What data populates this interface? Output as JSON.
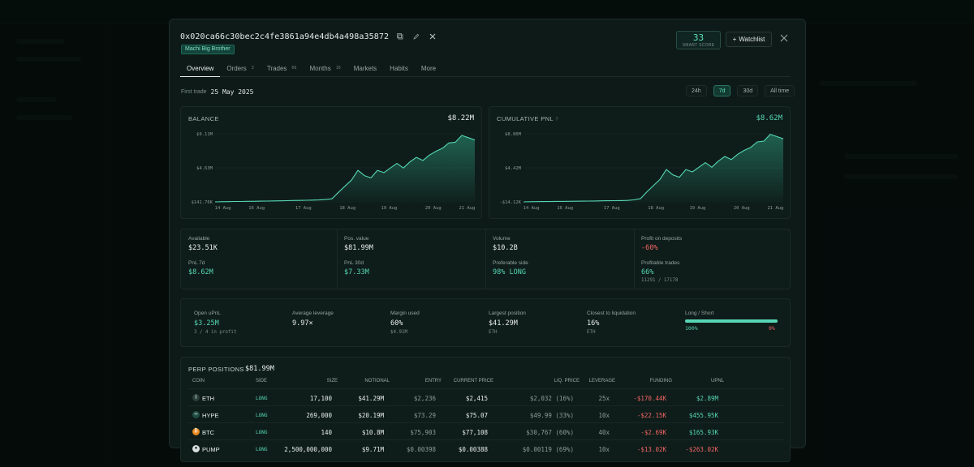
{
  "wallet": {
    "address": "0x020ca66c30bec2c4fe3861a94e4db4a498a35872",
    "tag": "Machi Big Brother",
    "smart_score": "33",
    "smart_score_label": "SMART SCORE",
    "watchlist_label": "Watchlist"
  },
  "icons": {
    "copy": "copy-icon",
    "edit": "edit-icon",
    "x": "x-social-icon",
    "close": "close-icon",
    "plus": "plus-icon"
  },
  "tabs": [
    {
      "label": "Overview",
      "count": ""
    },
    {
      "label": "Orders",
      "count": "3"
    },
    {
      "label": "Trades",
      "count": "66"
    },
    {
      "label": "Months",
      "count": "16"
    },
    {
      "label": "Markets",
      "count": ""
    },
    {
      "label": "Habits",
      "count": ""
    },
    {
      "label": "More",
      "count": ""
    }
  ],
  "first_trade": {
    "label": "First trade",
    "date": "25 May 2025"
  },
  "time_ranges": [
    "24h",
    "7d",
    "30d",
    "All time"
  ],
  "active_range": "7d",
  "balance_card": {
    "title": "BALANCE",
    "value": "$8.22M"
  },
  "pnl_card": {
    "title": "CUMULATIVE PNL",
    "value": "$8.62M"
  },
  "colors": {
    "accent": "#55d7b3",
    "negative": "#f06565",
    "background": "#0d1a17"
  },
  "chart_data": [
    {
      "type": "area",
      "title": "BALANCE",
      "x_ticks": [
        "14 Aug",
        "16 Aug",
        "17 Aug",
        "18 Aug",
        "19 Aug",
        "20 Aug",
        "21 Aug"
      ],
      "y_ticks": [
        "$9.11M",
        "$4.63M",
        "$141.76K"
      ],
      "ylim": [
        0.14176,
        9.11
      ],
      "y_unit": "$M",
      "grid": true,
      "values": [
        0.14,
        0.16,
        0.17,
        0.2,
        0.2,
        0.22,
        0.22,
        0.24,
        0.25,
        0.27,
        0.28,
        0.3,
        0.32,
        0.33,
        0.36,
        0.38,
        0.4,
        0.45,
        0.55,
        1.4,
        2.2,
        3.0,
        4.3,
        3.6,
        3.3,
        4.3,
        4.0,
        4.6,
        5.2,
        4.6,
        5.4,
        6.0,
        5.6,
        6.3,
        6.8,
        7.2,
        7.9,
        8.0,
        8.9,
        8.6,
        8.3
      ]
    },
    {
      "type": "area",
      "title": "CUMULATIVE PNL",
      "x_ticks": [
        "14 Aug",
        "16 Aug",
        "17 Aug",
        "18 Aug",
        "19 Aug",
        "20 Aug",
        "21 Aug"
      ],
      "y_ticks": [
        "$8.86M",
        "$4.42M",
        "-$14.12K"
      ],
      "ylim": [
        -0.01412,
        8.86
      ],
      "y_unit": "$M",
      "grid": true,
      "values": [
        -0.01,
        0.01,
        0.02,
        0.03,
        0.03,
        0.05,
        0.05,
        0.06,
        0.07,
        0.08,
        0.09,
        0.1,
        0.12,
        0.13,
        0.14,
        0.16,
        0.18,
        0.25,
        0.4,
        1.3,
        2.1,
        2.9,
        4.2,
        3.5,
        3.2,
        4.2,
        3.9,
        4.5,
        5.1,
        4.5,
        5.3,
        5.9,
        5.5,
        6.2,
        6.7,
        7.1,
        7.8,
        7.9,
        8.8,
        8.5,
        8.2
      ]
    }
  ],
  "stats": {
    "available": {
      "label": "Available",
      "value": "$23.51K"
    },
    "pos_value": {
      "label": "Pos. value",
      "value": "$81.99M"
    },
    "volume": {
      "label": "Volume",
      "value": "$10.2B"
    },
    "profit_deposits": {
      "label": "Profit on deposits",
      "value": "-60%"
    },
    "pnl_7d": {
      "label": "PnL 7d",
      "value": "$8.62M"
    },
    "pnl_30d": {
      "label": "PnL 30d",
      "value": "$7.33M"
    },
    "preferable_side": {
      "label": "Preferable side",
      "value": "98% LONG"
    },
    "profitable_trades": {
      "label": "Profitable trades",
      "value": "66%",
      "sub": "11291 / 17178"
    }
  },
  "summary": {
    "open_upnl": {
      "label": "Open uPnL",
      "value": "$3.25M",
      "sub": "3 / 4 in profit"
    },
    "avg_leverage": {
      "label": "Average leverage",
      "value": "9.97×"
    },
    "margin_used": {
      "label": "Margin used",
      "value": "60%",
      "sub": "$4.91M"
    },
    "largest_position": {
      "label": "Largest position",
      "value": "$41.29M",
      "sub": "ETH"
    },
    "closest_liq": {
      "label": "Closest to liquidation",
      "value": "16%",
      "sub": "ETH"
    },
    "long_short": {
      "label": "Long / Short",
      "long": "100%",
      "short": "0%",
      "long_fraction": 1.0
    }
  },
  "positions": {
    "title": "PERP POSITIONS",
    "total": "$81.99M",
    "columns": [
      "COIN",
      "SIDE",
      "SIZE",
      "NOTIONAL",
      "ENTRY",
      "CURRENT PRICE",
      "LIQ. PRICE",
      "LEVERAGE",
      "FUNDING",
      "UPNL"
    ],
    "rows": [
      {
        "coin": "ETH",
        "icon": "ethereum-icon",
        "glyph": "⟠",
        "side": "LONG",
        "size": "17,100",
        "notional": "$41.29M",
        "entry": "$2,236",
        "price": "$2,415",
        "liq": "$2,032 (16%)",
        "leverage": "25x",
        "funding": "-$170.44K",
        "upnl": "$2.89M"
      },
      {
        "coin": "HYPE",
        "icon": "hyperliquid-icon",
        "glyph": "∞",
        "side": "LONG",
        "size": "269,000",
        "notional": "$20.19M",
        "entry": "$73.29",
        "price": "$75.07",
        "liq": "$49.99 (33%)",
        "leverage": "10x",
        "funding": "-$22.15K",
        "upnl": "$455.95K"
      },
      {
        "coin": "BTC",
        "icon": "bitcoin-icon",
        "glyph": "₿",
        "side": "LONG",
        "size": "140",
        "notional": "$10.8M",
        "entry": "$75,903",
        "price": "$77,108",
        "liq": "$30,767 (60%)",
        "leverage": "40x",
        "funding": "-$2.69K",
        "upnl": "$165.93K"
      },
      {
        "coin": "PUMP",
        "icon": "pump-icon",
        "glyph": "●",
        "side": "LONG",
        "size": "2,500,000,000",
        "notional": "$9.71M",
        "entry": "$0.00398",
        "price": "$0.00388",
        "liq": "$0.00119 (69%)",
        "leverage": "10x",
        "funding": "-$13.02K",
        "upnl": "-$263.02K"
      }
    ]
  }
}
